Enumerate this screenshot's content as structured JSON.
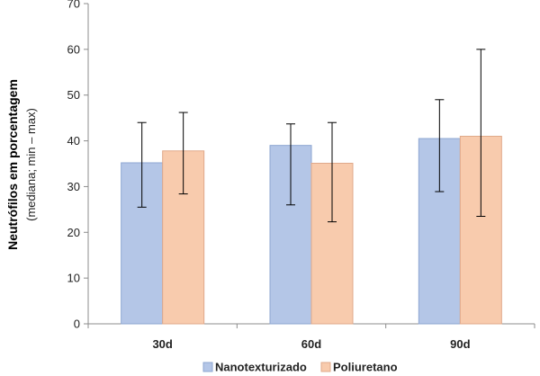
{
  "chart_data": {
    "type": "bar",
    "categories": [
      "30d",
      "60d",
      "90d"
    ],
    "series": [
      {
        "name": "Nanotexturizado",
        "color": "#b4c6e7",
        "border": "#8ea7d2",
        "values": [
          35.2,
          39.0,
          40.5
        ],
        "err_low": [
          25.5,
          26.0,
          28.9
        ],
        "err_high": [
          44.0,
          43.7,
          49.0
        ]
      },
      {
        "name": "Poliuretano",
        "color": "#f8cbad",
        "border": "#e0a98a",
        "values": [
          37.8,
          35.1,
          41.0
        ],
        "err_low": [
          28.4,
          22.3,
          23.5
        ],
        "err_high": [
          46.2,
          44.0,
          60.0
        ]
      }
    ],
    "ylabel": "Neutrófilos em porcentagem",
    "ylabel_sub": "(mediana;  min – max)",
    "xlabel": "",
    "ylim": [
      0,
      70
    ],
    "yticks": [
      0,
      10,
      20,
      30,
      40,
      50,
      60,
      70
    ],
    "grid": false,
    "legend": "bottom"
  }
}
